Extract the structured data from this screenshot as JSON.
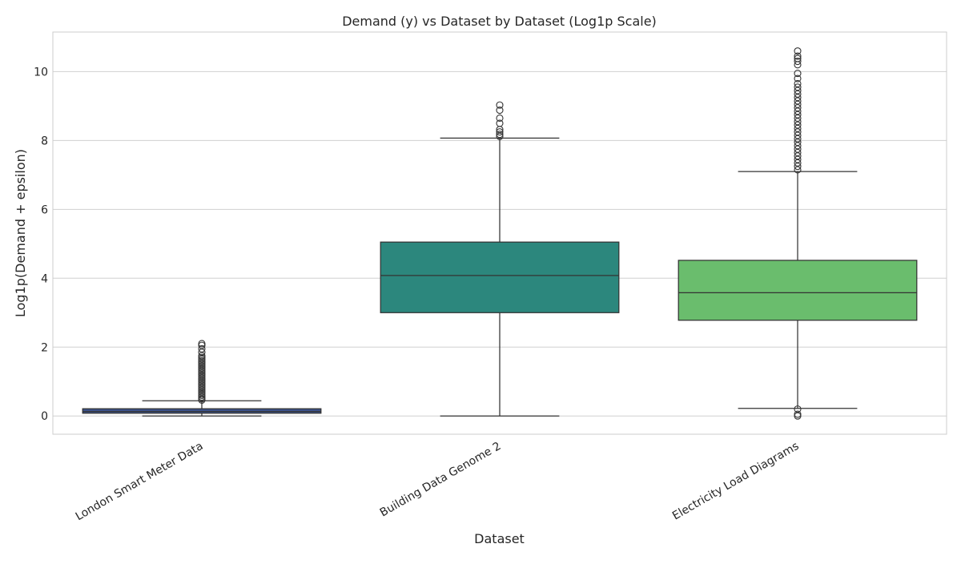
{
  "chart_data": {
    "type": "box",
    "title": "Demand (y) vs Dataset by Dataset (Log1p Scale)",
    "xlabel": "Dataset",
    "ylabel": "Log1p(Demand + epsilon)",
    "ylim": [
      -0.53,
      11.15
    ],
    "yticks": [
      0,
      2,
      4,
      6,
      8,
      10
    ],
    "grid": true,
    "categories": [
      "London Smart Meter Data",
      "Building Data Genome 2",
      "Electricity Load Diagrams"
    ],
    "colors": [
      "#3b528b",
      "#2c877d",
      "#6abd6d"
    ],
    "boxes": [
      {
        "category": "London Smart Meter Data",
        "whisker_low": 0.0,
        "q1": 0.08,
        "median": 0.13,
        "q3": 0.21,
        "whisker_high": 0.44,
        "outliers": [
          0.46,
          0.5,
          0.55,
          0.6,
          0.65,
          0.7,
          0.75,
          0.8,
          0.85,
          0.9,
          0.95,
          1.0,
          1.05,
          1.1,
          1.15,
          1.2,
          1.25,
          1.3,
          1.35,
          1.4,
          1.45,
          1.5,
          1.55,
          1.6,
          1.65,
          1.7,
          1.75,
          1.85,
          1.95,
          2.05,
          2.1
        ]
      },
      {
        "category": "Building Data Genome 2",
        "whisker_low": 0.0,
        "q1": 3.0,
        "median": 4.08,
        "q3": 5.05,
        "whisker_high": 8.07,
        "outliers": [
          8.12,
          8.18,
          8.25,
          8.32,
          8.5,
          8.65,
          8.88,
          9.03
        ]
      },
      {
        "category": "Electricity Load Diagrams",
        "whisker_low": 0.22,
        "q1": 2.78,
        "median": 3.58,
        "q3": 4.52,
        "whisker_high": 7.1,
        "outliers": [
          0.0,
          0.05,
          0.2,
          7.15,
          7.25,
          7.35,
          7.45,
          7.55,
          7.65,
          7.75,
          7.85,
          7.95,
          8.05,
          8.15,
          8.25,
          8.35,
          8.45,
          8.55,
          8.65,
          8.75,
          8.85,
          8.95,
          9.05,
          9.15,
          9.25,
          9.35,
          9.45,
          9.55,
          9.65,
          9.8,
          9.95,
          10.2,
          10.3,
          10.38,
          10.45,
          10.6
        ]
      }
    ]
  }
}
